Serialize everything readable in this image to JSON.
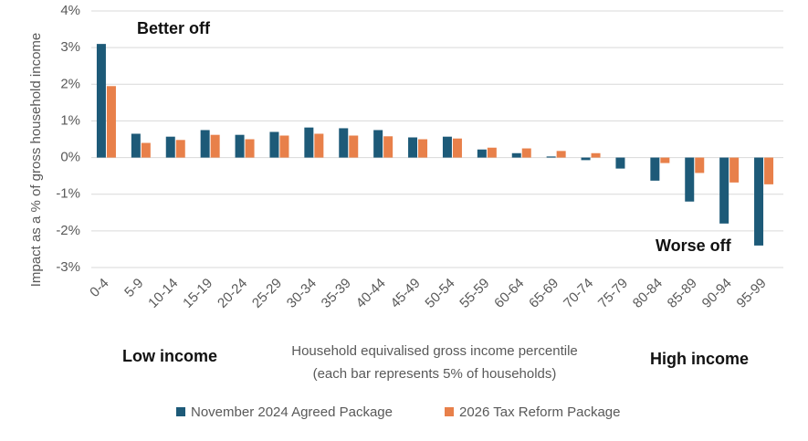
{
  "chart_data": {
    "type": "bar",
    "ylabel": "Impact as a % of gross household income",
    "xlabel": [
      "Household equivalised gross income percentile",
      "(each bar represents 5% of households)"
    ],
    "annotations": [
      "Better off",
      "Worse off",
      "Low income",
      "High income"
    ],
    "categories": [
      "0-4",
      "5-9",
      "10-14",
      "15-19",
      "20-24",
      "25-29",
      "30-34",
      "35-39",
      "40-44",
      "45-49",
      "50-54",
      "55-59",
      "60-64",
      "65-69",
      "70-74",
      "75-79",
      "80-84",
      "85-89",
      "90-94",
      "95-99"
    ],
    "series": [
      {
        "name": "November 2024 Agreed Package",
        "color": "#1d5a78",
        "values": [
          3.1,
          0.65,
          0.57,
          0.75,
          0.62,
          0.7,
          0.82,
          0.8,
          0.75,
          0.55,
          0.57,
          0.22,
          0.12,
          0.03,
          -0.07,
          -0.3,
          -0.63,
          -1.2,
          -1.8,
          -2.4
        ]
      },
      {
        "name": "2026 Tax Reform Package",
        "color": "#e8804a",
        "values": [
          1.95,
          0.4,
          0.48,
          0.62,
          0.5,
          0.6,
          0.65,
          0.6,
          0.58,
          0.5,
          0.52,
          0.27,
          0.25,
          0.18,
          0.12,
          0,
          -0.15,
          -0.42,
          -0.68,
          -0.73
        ]
      }
    ],
    "ylim": [
      -3,
      4
    ],
    "yticks": [
      {
        "value": -3,
        "label": "-3%"
      },
      {
        "value": -2,
        "label": "-2%"
      },
      {
        "value": -1,
        "label": "-1%"
      },
      {
        "value": 0,
        "label": "0%"
      },
      {
        "value": 1,
        "label": "1%"
      },
      {
        "value": 2,
        "label": "2%"
      },
      {
        "value": 3,
        "label": "3%"
      },
      {
        "value": 4,
        "label": "4%"
      }
    ],
    "grid": true
  }
}
